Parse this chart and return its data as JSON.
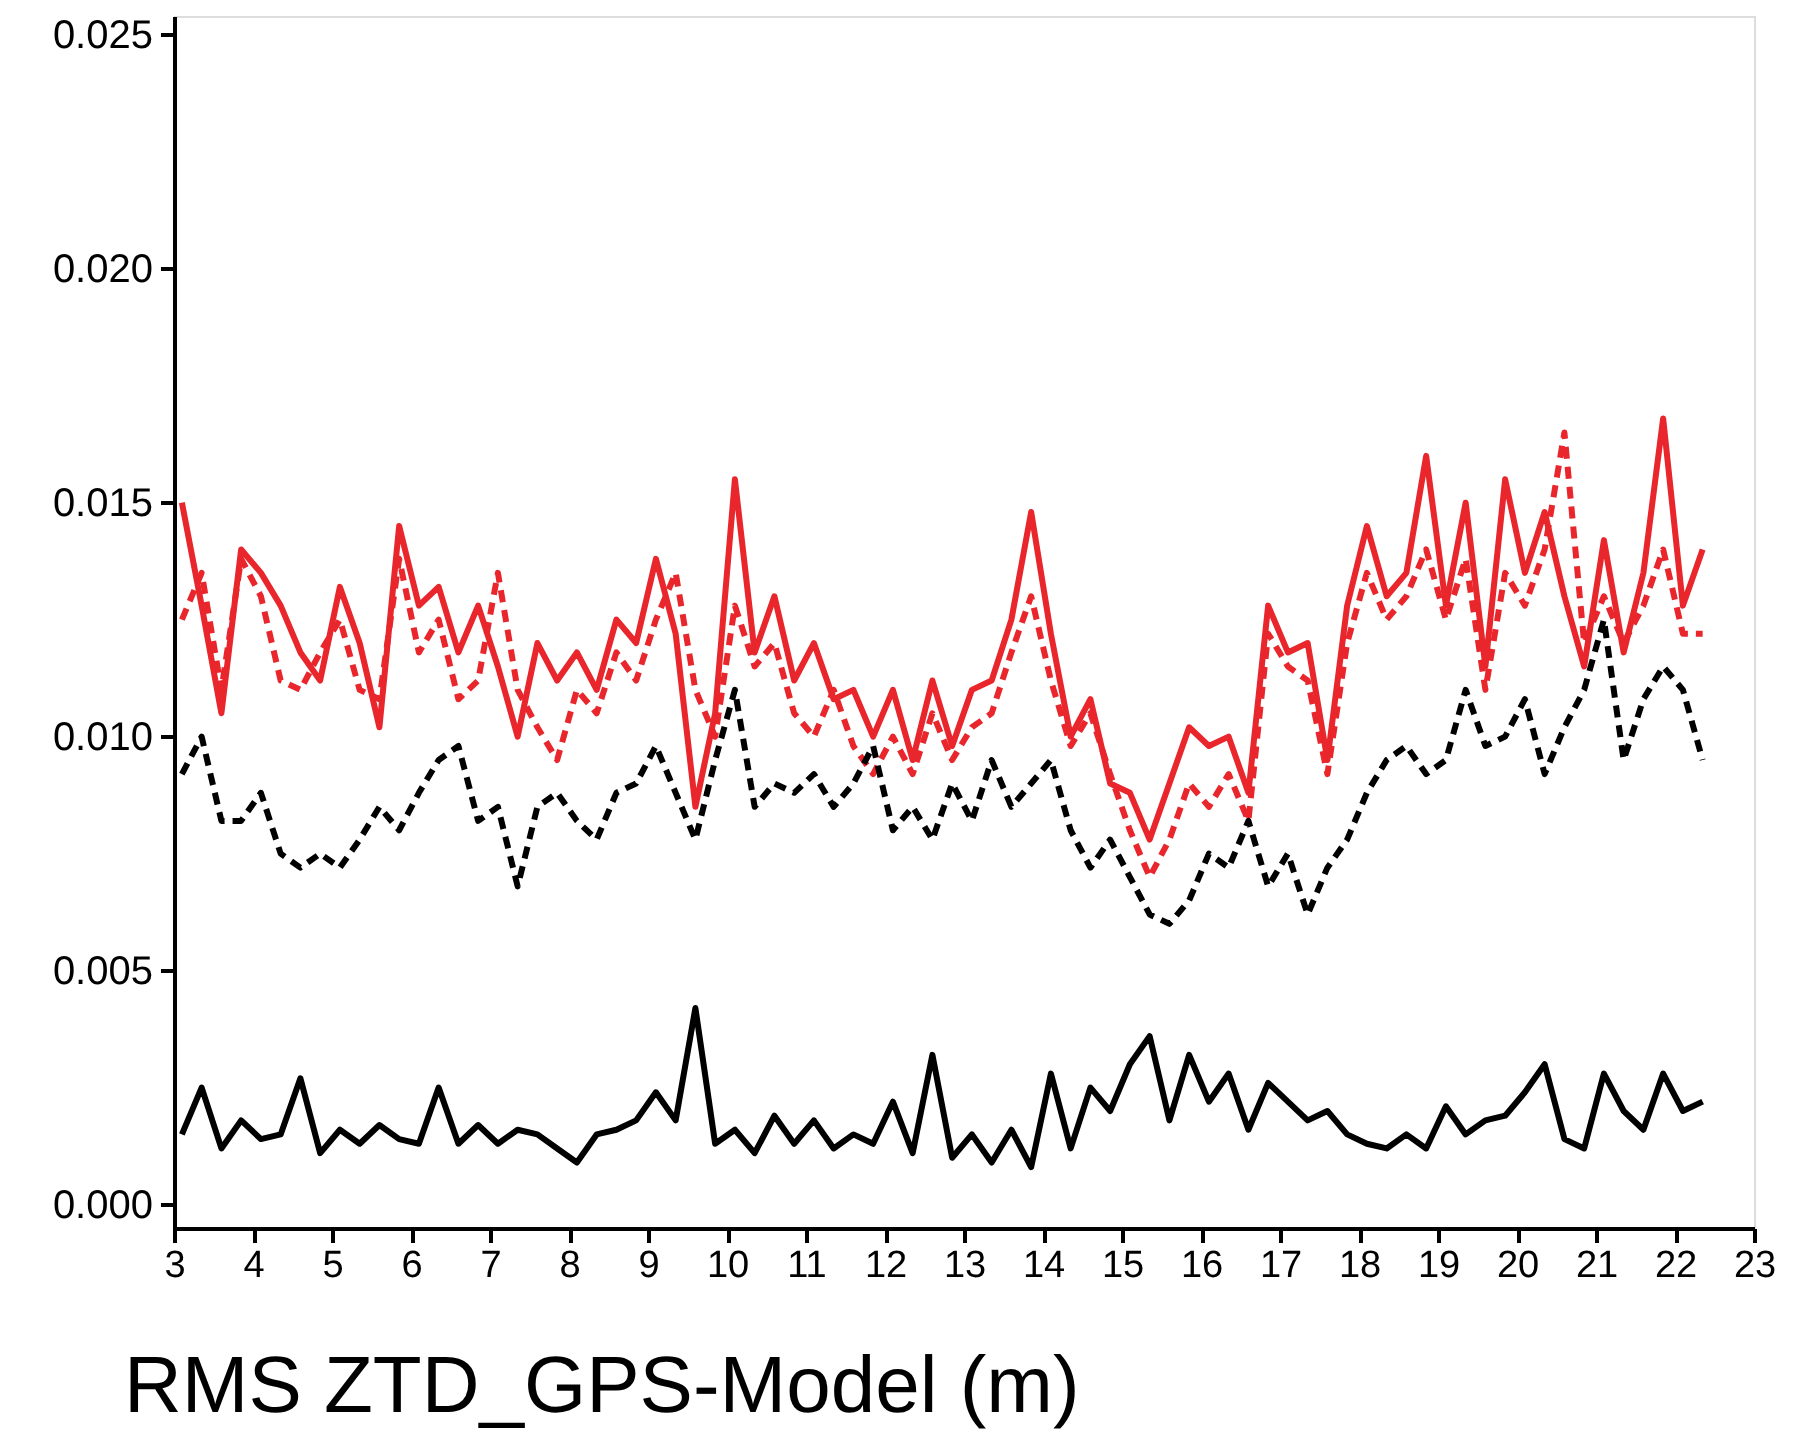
{
  "chart_data": {
    "type": "line",
    "xlabel": "RMS ZTD_GPS-Model (m)",
    "x": [
      3.1,
      3.35,
      3.6,
      3.85,
      4.1,
      4.35,
      4.6,
      4.85,
      5.1,
      5.35,
      5.6,
      5.85,
      6.1,
      6.35,
      6.6,
      6.85,
      7.1,
      7.35,
      7.6,
      7.85,
      8.1,
      8.35,
      8.6,
      8.85,
      9.1,
      9.35,
      9.6,
      9.85,
      10.1,
      10.35,
      10.6,
      10.85,
      11.1,
      11.35,
      11.6,
      11.85,
      12.1,
      12.35,
      12.6,
      12.85,
      13.1,
      13.35,
      13.6,
      13.85,
      14.1,
      14.35,
      14.6,
      14.85,
      15.1,
      15.35,
      15.6,
      15.85,
      16.1,
      16.35,
      16.6,
      16.85,
      17.1,
      17.35,
      17.6,
      17.85,
      18.1,
      18.35,
      18.6,
      18.85,
      19.1,
      19.35,
      19.6,
      19.85,
      20.1,
      20.35,
      20.6,
      20.85,
      21.1,
      21.35,
      21.6,
      21.85,
      22.1,
      22.35
    ],
    "series": [
      {
        "color": "#e8262c",
        "line_style": "solid",
        "values": [
          0.015,
          0.0128,
          0.0105,
          0.014,
          0.0135,
          0.0128,
          0.0118,
          0.0112,
          0.0132,
          0.012,
          0.0102,
          0.0145,
          0.0128,
          0.0132,
          0.0118,
          0.0128,
          0.0115,
          0.01,
          0.012,
          0.0112,
          0.0118,
          0.011,
          0.0125,
          0.012,
          0.0138,
          0.0122,
          0.0085,
          0.0105,
          0.0155,
          0.0118,
          0.013,
          0.0112,
          0.012,
          0.0108,
          0.011,
          0.01,
          0.011,
          0.0095,
          0.0112,
          0.0098,
          0.011,
          0.0112,
          0.0125,
          0.0148,
          0.0122,
          0.01,
          0.0108,
          0.009,
          0.0088,
          0.0078,
          0.009,
          0.0102,
          0.0098,
          0.01,
          0.0088,
          0.0128,
          0.0118,
          0.012,
          0.0095,
          0.0128,
          0.0145,
          0.013,
          0.0135,
          0.016,
          0.0128,
          0.015,
          0.0115,
          0.0155,
          0.0135,
          0.0148,
          0.013,
          0.0115,
          0.0142,
          0.0118,
          0.0135,
          0.0168,
          0.0128,
          0.014
        ]
      },
      {
        "color": "#e8262c",
        "line_style": "dashed",
        "values": [
          0.0125,
          0.0135,
          0.011,
          0.0138,
          0.013,
          0.0112,
          0.011,
          0.0118,
          0.0125,
          0.011,
          0.0108,
          0.0138,
          0.0118,
          0.0125,
          0.0108,
          0.0112,
          0.0135,
          0.011,
          0.0102,
          0.0095,
          0.011,
          0.0105,
          0.0118,
          0.0112,
          0.0125,
          0.0135,
          0.011,
          0.01,
          0.0128,
          0.0115,
          0.012,
          0.0105,
          0.01,
          0.011,
          0.0098,
          0.0092,
          0.01,
          0.0092,
          0.0105,
          0.0095,
          0.0102,
          0.0105,
          0.0118,
          0.013,
          0.0112,
          0.0098,
          0.0105,
          0.0092,
          0.008,
          0.007,
          0.0078,
          0.009,
          0.0085,
          0.0092,
          0.0082,
          0.0122,
          0.0115,
          0.0112,
          0.0092,
          0.012,
          0.0135,
          0.0125,
          0.013,
          0.014,
          0.0125,
          0.0138,
          0.011,
          0.0135,
          0.0128,
          0.014,
          0.0165,
          0.012,
          0.013,
          0.012,
          0.0128,
          0.014,
          0.0122,
          0.0122
        ]
      },
      {
        "color": "#000000",
        "line_style": "dashed",
        "values": [
          0.0092,
          0.01,
          0.0082,
          0.0082,
          0.0088,
          0.0075,
          0.0072,
          0.0075,
          0.0072,
          0.0078,
          0.0085,
          0.008,
          0.0088,
          0.0095,
          0.0098,
          0.0082,
          0.0085,
          0.0068,
          0.0085,
          0.0088,
          0.0082,
          0.0078,
          0.0088,
          0.009,
          0.0098,
          0.0088,
          0.0078,
          0.0095,
          0.011,
          0.0085,
          0.009,
          0.0088,
          0.0092,
          0.0085,
          0.009,
          0.0098,
          0.008,
          0.0085,
          0.0078,
          0.009,
          0.0082,
          0.0095,
          0.0085,
          0.009,
          0.0095,
          0.008,
          0.0072,
          0.0078,
          0.007,
          0.0062,
          0.006,
          0.0065,
          0.0075,
          0.0072,
          0.0082,
          0.0068,
          0.0075,
          0.0062,
          0.0072,
          0.0078,
          0.0088,
          0.0095,
          0.0098,
          0.0092,
          0.0095,
          0.011,
          0.0098,
          0.01,
          0.0108,
          0.0092,
          0.0102,
          0.011,
          0.0125,
          0.0095,
          0.0108,
          0.0115,
          0.011,
          0.0095
        ]
      },
      {
        "color": "#000000",
        "line_style": "solid",
        "values": [
          0.0015,
          0.0025,
          0.0012,
          0.0018,
          0.0014,
          0.0015,
          0.0027,
          0.0011,
          0.0016,
          0.0013,
          0.0017,
          0.0014,
          0.0013,
          0.0025,
          0.0013,
          0.0017,
          0.0013,
          0.0016,
          0.0015,
          0.0012,
          0.0009,
          0.0015,
          0.0016,
          0.0018,
          0.0024,
          0.0018,
          0.0042,
          0.0013,
          0.0016,
          0.0011,
          0.0019,
          0.0013,
          0.0018,
          0.0012,
          0.0015,
          0.0013,
          0.0022,
          0.0011,
          0.0032,
          0.001,
          0.0015,
          0.0009,
          0.0016,
          0.0008,
          0.0028,
          0.0012,
          0.0025,
          0.002,
          0.003,
          0.0036,
          0.0018,
          0.0032,
          0.0022,
          0.0028,
          0.0016,
          0.0026,
          0.0022,
          0.0018,
          0.002,
          0.0015,
          0.0013,
          0.0012,
          0.0015,
          0.0012,
          0.0021,
          0.0015,
          0.0018,
          0.0019,
          0.0024,
          0.003,
          0.0014,
          0.0012,
          0.0028,
          0.002,
          0.0016,
          0.0028,
          0.002,
          0.0022
        ]
      }
    ],
    "xlim": [
      3,
      23
    ],
    "xticks": [
      3,
      4,
      5,
      6,
      7,
      8,
      9,
      10,
      11,
      12,
      13,
      14,
      15,
      16,
      17,
      18,
      19,
      20,
      21,
      22,
      23
    ],
    "ylim": [
      -0.0005,
      0.0254
    ],
    "yticks": [
      {
        "value": 0,
        "label": "0.000"
      },
      {
        "value": 0.005,
        "label": "0.005"
      },
      {
        "value": 0.01,
        "label": "0.010"
      },
      {
        "value": 0.015,
        "label": "0.015"
      },
      {
        "value": 0.02,
        "label": "0.020"
      },
      {
        "value": 0.025,
        "label": "0.025"
      }
    ],
    "grid": false,
    "marker": "none"
  }
}
